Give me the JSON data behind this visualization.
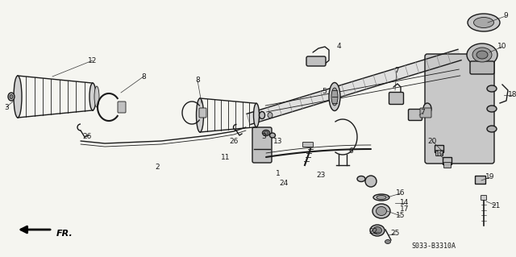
{
  "bg_color": "#f5f5f0",
  "line_color": "#1a1a1a",
  "diagram_code": "S033-B3310A",
  "fig_width": 6.4,
  "fig_height": 3.19,
  "dpi": 100
}
